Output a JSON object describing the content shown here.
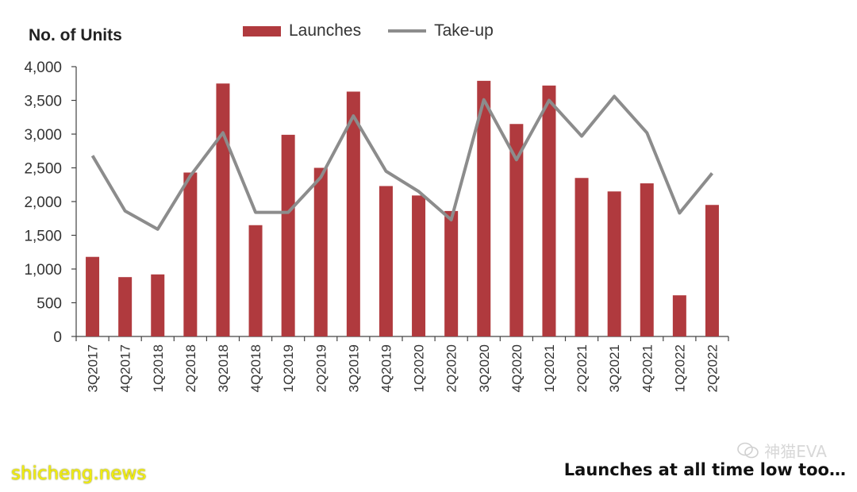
{
  "chart_data": {
    "type": "bar",
    "ylabel": "No. of Units",
    "ylim": [
      0,
      4000
    ],
    "yticks": [
      0,
      500,
      1000,
      1500,
      2000,
      2500,
      3000,
      3500,
      4000
    ],
    "ytick_labels": [
      "0",
      "500",
      "1,000",
      "1,500",
      "2,000",
      "2,500",
      "3,000",
      "3,500",
      "4,000"
    ],
    "categories": [
      "3Q2017",
      "4Q2017",
      "1Q2018",
      "2Q2018",
      "3Q2018",
      "4Q2018",
      "1Q2019",
      "2Q2019",
      "3Q2019",
      "4Q2019",
      "1Q2020",
      "2Q2020",
      "3Q2020",
      "4Q2020",
      "1Q2021",
      "2Q2021",
      "3Q2021",
      "4Q2021",
      "1Q2022",
      "2Q2022"
    ],
    "series": [
      {
        "name": "Launches",
        "type": "bar",
        "color": "#b03a3e",
        "values": [
          1180,
          880,
          920,
          2430,
          3750,
          1650,
          2990,
          2500,
          3630,
          2230,
          2090,
          1860,
          3790,
          3150,
          3720,
          2350,
          2150,
          2270,
          610,
          1950
        ]
      },
      {
        "name": "Take-up",
        "type": "line",
        "color": "#8c8c8c",
        "values": [
          2680,
          1860,
          1590,
          2380,
          3020,
          1840,
          1840,
          2360,
          3270,
          2450,
          2150,
          1730,
          3510,
          2620,
          3500,
          2970,
          3560,
          3020,
          1830,
          2420
        ]
      }
    ],
    "grid": false,
    "legend_position": "top"
  },
  "caption": "Launches at all time low too…",
  "site": "shicheng.news",
  "watermark": "神猫EVA"
}
